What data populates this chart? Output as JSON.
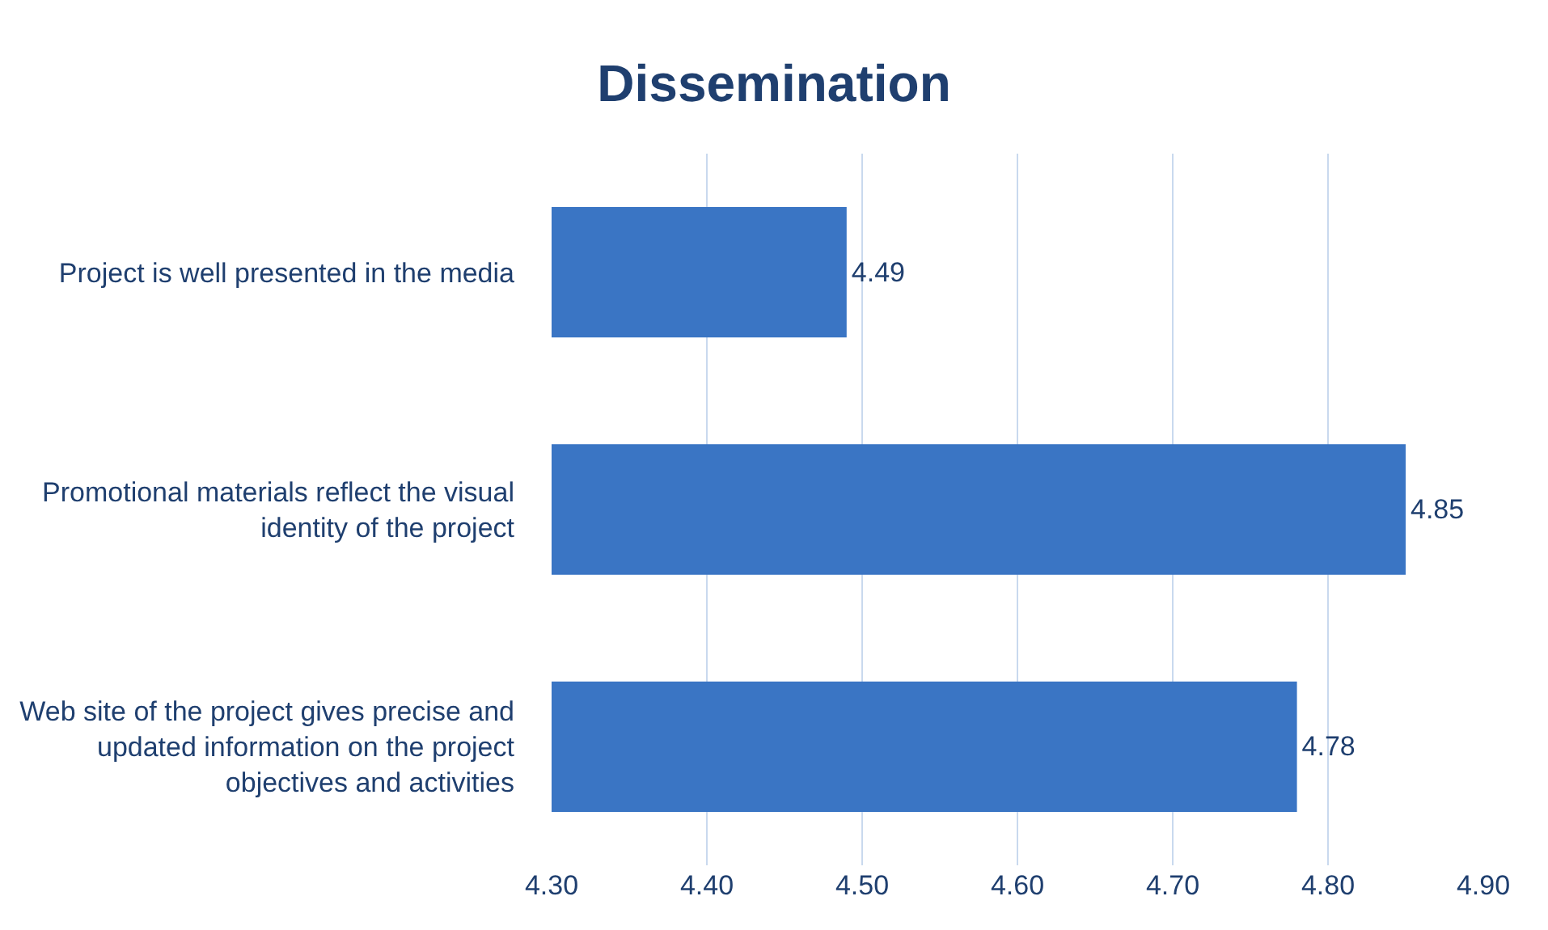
{
  "chart_data": {
    "type": "bar",
    "orientation": "horizontal",
    "title": "Dissemination",
    "categories": [
      "Project is well presented in the media",
      "Promotional materials reflect the visual identity of the project",
      "Web site of the project gives precise and updated information on the project objectives and activities"
    ],
    "values": [
      4.49,
      4.85,
      4.78
    ],
    "color": "#3a75c4",
    "xlim": [
      4.3,
      4.9
    ],
    "xticks": [
      {
        "value": 4.3,
        "label": "4.30"
      },
      {
        "value": 4.4,
        "label": "4.40"
      },
      {
        "value": 4.5,
        "label": "4.50"
      },
      {
        "value": 4.6,
        "label": "4.60"
      },
      {
        "value": 4.7,
        "label": "4.70"
      },
      {
        "value": 4.8,
        "label": "4.80"
      },
      {
        "value": 4.9,
        "label": "4.90"
      }
    ],
    "grid": "x",
    "data_labels": true,
    "legend": false
  }
}
